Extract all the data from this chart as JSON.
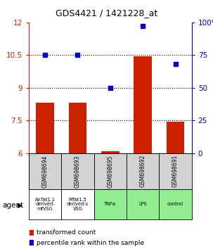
{
  "title": "GDS4421 / 1421228_at",
  "samples": [
    "GSM698694",
    "GSM698693",
    "GSM698695",
    "GSM698692",
    "GSM698691"
  ],
  "agents": [
    "AnTat1.1\nderived-\nmfVSG",
    "MTat1.5\nderived-s\nVSG",
    "TNFα",
    "LPS",
    "control"
  ],
  "agent_colors": [
    "#ffffff",
    "#ffffff",
    "#90ee90",
    "#90ee90",
    "#90ee90"
  ],
  "bar_values": [
    8.3,
    8.3,
    6.1,
    10.45,
    7.45
  ],
  "dot_values": [
    75,
    75,
    50,
    97,
    68
  ],
  "bar_bottom": 6.0,
  "ylim_left": [
    6,
    12
  ],
  "ylim_right": [
    0,
    100
  ],
  "yticks_left": [
    6,
    7.5,
    9,
    10.5,
    12
  ],
  "yticks_right": [
    0,
    25,
    50,
    75,
    100
  ],
  "ytick_labels_left": [
    "6",
    "7.5",
    "9",
    "10.5",
    "12"
  ],
  "ytick_labels_right": [
    "0",
    "25",
    "50",
    "75",
    "100%"
  ],
  "bar_color": "#cc2200",
  "dot_color": "#0000cc",
  "hline_values": [
    7.5,
    9,
    10.5
  ],
  "left_axis_color": "#cc2200",
  "right_axis_color": "#0000cc",
  "legend_bar_label": "transformed count",
  "legend_dot_label": "percentile rank within the sample",
  "agent_label": "agent",
  "bg_plot": "#ffffff",
  "bg_sample": "#d3d3d3"
}
